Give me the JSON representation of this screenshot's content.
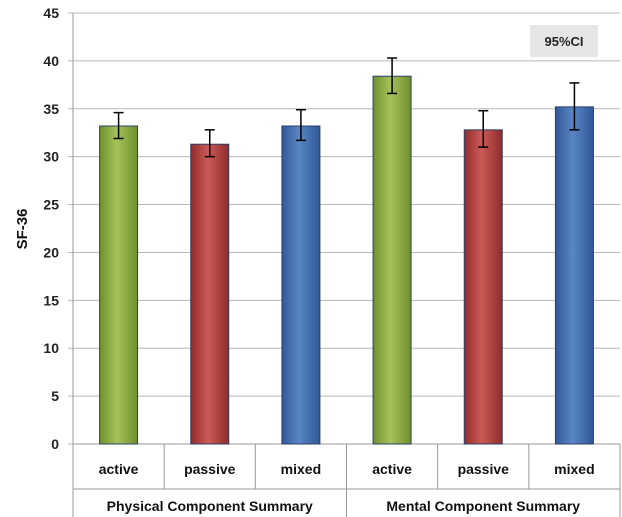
{
  "chart_data": {
    "type": "bar",
    "ylabel": "SF-36",
    "ylim": [
      0,
      45
    ],
    "yticks": [
      0,
      5,
      10,
      15,
      20,
      25,
      30,
      35,
      40,
      45
    ],
    "grid": true,
    "annotation": "95%CI",
    "groups": [
      "Physical Component Summary",
      "Mental Component Summary"
    ],
    "categories": [
      "active",
      "passive",
      "mixed",
      "active",
      "passive",
      "mixed"
    ],
    "values": [
      33.2,
      31.3,
      33.2,
      38.4,
      32.8,
      35.2
    ],
    "ci_low": [
      31.9,
      30.0,
      31.7,
      36.6,
      31.0,
      32.8
    ],
    "ci_high": [
      34.6,
      32.8,
      34.9,
      40.3,
      34.8,
      37.7
    ],
    "colors": {
      "active": "#8fb049",
      "passive": "#b5403f",
      "mixed": "#4471b3"
    }
  }
}
